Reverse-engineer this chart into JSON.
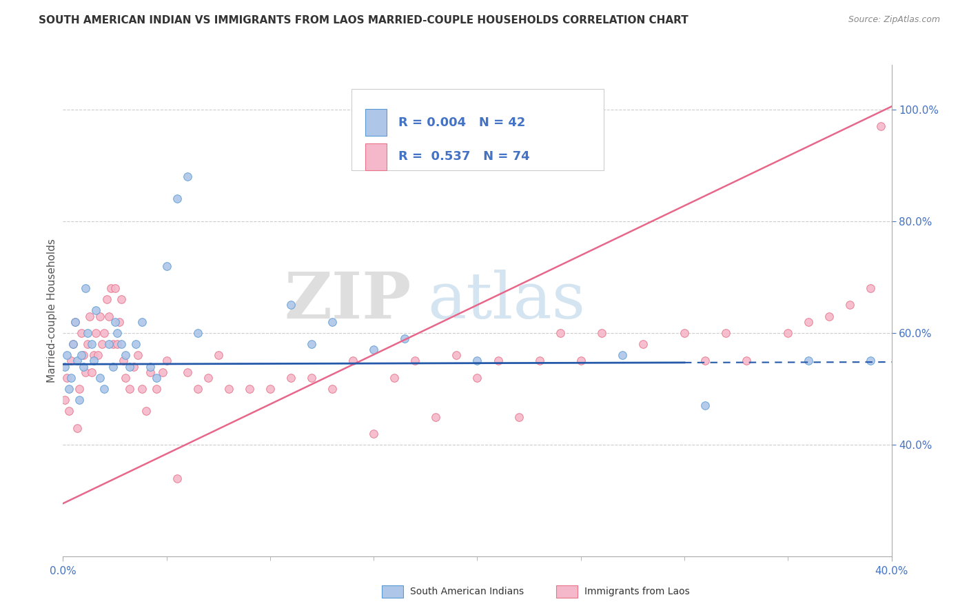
{
  "title": "SOUTH AMERICAN INDIAN VS IMMIGRANTS FROM LAOS MARRIED-COUPLE HOUSEHOLDS CORRELATION CHART",
  "source": "Source: ZipAtlas.com",
  "ylabel": "Married-couple Households",
  "ylabel_right_ticks": [
    "40.0%",
    "60.0%",
    "80.0%",
    "100.0%"
  ],
  "ylabel_right_vals": [
    0.4,
    0.6,
    0.8,
    1.0
  ],
  "xlim": [
    0.0,
    0.4
  ],
  "ylim": [
    0.2,
    1.08
  ],
  "series1_name": "South American Indians",
  "series1_color": "#aec6e8",
  "series1_edge": "#5b9bd5",
  "series1_R": "0.004",
  "series1_N": "42",
  "series2_name": "Immigrants from Laos",
  "series2_color": "#f4b8ca",
  "series2_edge": "#e8748a",
  "series2_R": "0.537",
  "series2_N": "74",
  "legend_R_color": "#4472c4",
  "scatter1_x": [
    0.001,
    0.002,
    0.003,
    0.004,
    0.005,
    0.006,
    0.007,
    0.008,
    0.009,
    0.01,
    0.011,
    0.012,
    0.014,
    0.015,
    0.016,
    0.018,
    0.02,
    0.022,
    0.024,
    0.025,
    0.026,
    0.028,
    0.03,
    0.032,
    0.035,
    0.038,
    0.042,
    0.045,
    0.05,
    0.055,
    0.06,
    0.065,
    0.11,
    0.12,
    0.13,
    0.15,
    0.165,
    0.2,
    0.27,
    0.31,
    0.36,
    0.39
  ],
  "scatter1_y": [
    0.54,
    0.56,
    0.5,
    0.52,
    0.58,
    0.62,
    0.55,
    0.48,
    0.56,
    0.54,
    0.68,
    0.6,
    0.58,
    0.55,
    0.64,
    0.52,
    0.5,
    0.58,
    0.54,
    0.62,
    0.6,
    0.58,
    0.56,
    0.54,
    0.58,
    0.62,
    0.54,
    0.52,
    0.72,
    0.84,
    0.88,
    0.6,
    0.65,
    0.58,
    0.62,
    0.57,
    0.59,
    0.55,
    0.56,
    0.47,
    0.55,
    0.55
  ],
  "scatter2_x": [
    0.001,
    0.002,
    0.003,
    0.004,
    0.005,
    0.006,
    0.007,
    0.008,
    0.009,
    0.01,
    0.011,
    0.012,
    0.013,
    0.014,
    0.015,
    0.016,
    0.017,
    0.018,
    0.019,
    0.02,
    0.021,
    0.022,
    0.023,
    0.024,
    0.025,
    0.026,
    0.027,
    0.028,
    0.029,
    0.03,
    0.032,
    0.034,
    0.036,
    0.038,
    0.04,
    0.042,
    0.045,
    0.048,
    0.05,
    0.055,
    0.06,
    0.065,
    0.07,
    0.075,
    0.08,
    0.09,
    0.1,
    0.11,
    0.12,
    0.13,
    0.14,
    0.15,
    0.16,
    0.17,
    0.18,
    0.19,
    0.2,
    0.21,
    0.22,
    0.23,
    0.24,
    0.25,
    0.26,
    0.28,
    0.3,
    0.31,
    0.32,
    0.33,
    0.35,
    0.36,
    0.37,
    0.38,
    0.39,
    0.395
  ],
  "scatter2_y": [
    0.48,
    0.52,
    0.46,
    0.55,
    0.58,
    0.62,
    0.43,
    0.5,
    0.6,
    0.56,
    0.53,
    0.58,
    0.63,
    0.53,
    0.56,
    0.6,
    0.56,
    0.63,
    0.58,
    0.6,
    0.66,
    0.63,
    0.68,
    0.58,
    0.68,
    0.58,
    0.62,
    0.66,
    0.55,
    0.52,
    0.5,
    0.54,
    0.56,
    0.5,
    0.46,
    0.53,
    0.5,
    0.53,
    0.55,
    0.34,
    0.53,
    0.5,
    0.52,
    0.56,
    0.5,
    0.5,
    0.5,
    0.52,
    0.52,
    0.5,
    0.55,
    0.42,
    0.52,
    0.55,
    0.45,
    0.56,
    0.52,
    0.55,
    0.45,
    0.55,
    0.6,
    0.55,
    0.6,
    0.58,
    0.6,
    0.55,
    0.6,
    0.55,
    0.6,
    0.62,
    0.63,
    0.65,
    0.68,
    0.97
  ],
  "background_color": "#ffffff",
  "grid_color": "#cccccc",
  "watermark_zip": "ZIP",
  "watermark_atlas": "atlas",
  "trend1_color": "#2458a8",
  "trend2_color": "#e8668a",
  "trend1_x": [
    0.0,
    0.4
  ],
  "trend1_y": [
    0.544,
    0.548
  ],
  "trend2_x": [
    0.0,
    0.4
  ],
  "trend2_y": [
    0.295,
    1.005
  ],
  "blue_line_solid_end": 0.3,
  "blue_line_dash_start": 0.3,
  "blue_line_end": 0.4
}
